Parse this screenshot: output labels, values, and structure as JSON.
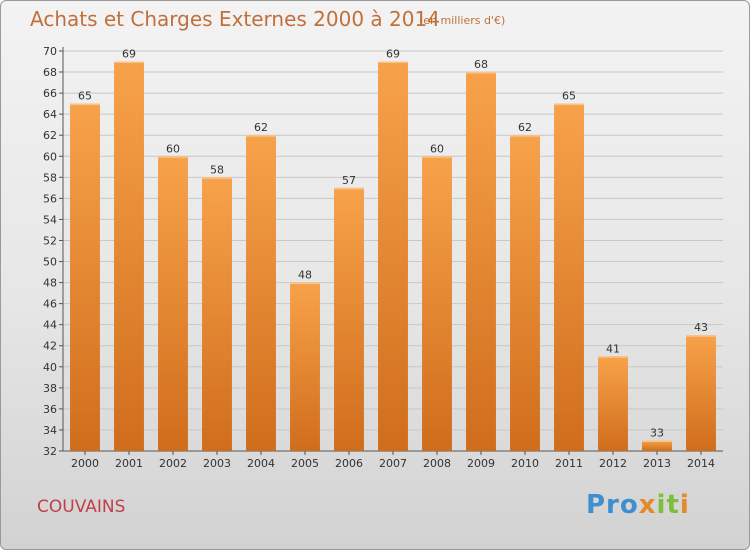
{
  "header": {
    "title": "Achats et Charges Externes 2000 à 2014",
    "subtitle": "(en milliers d'€)"
  },
  "footer": {
    "place": "COUVAINS",
    "logo_parts": [
      "Pro",
      "x",
      "i",
      "t",
      "i"
    ],
    "logo_colors": [
      "#3f8fd0",
      "#e58a2a",
      "#7bbf3a",
      "#7bbf3a",
      "#e58a2a"
    ]
  },
  "colors": {
    "bar_light": "#f7a24a",
    "bar_dark": "#d06d1c",
    "grid": "#c8c8c8",
    "title": "#c0703a",
    "place": "#c0404a"
  },
  "chart_data": {
    "type": "bar",
    "categories": [
      "2000",
      "2001",
      "2002",
      "2003",
      "2004",
      "2005",
      "2006",
      "2007",
      "2008",
      "2009",
      "2010",
      "2011",
      "2012",
      "2013",
      "2014"
    ],
    "values": [
      65,
      69,
      60,
      58,
      62,
      48,
      57,
      69,
      60,
      68,
      62,
      65,
      41,
      33,
      43
    ],
    "title": "Achats et Charges Externes 2000 à 2014",
    "subtitle": "(en milliers d'€)",
    "xlabel": "",
    "ylabel": "",
    "ylim": [
      32,
      70
    ],
    "yticks": [
      32,
      34,
      36,
      38,
      40,
      42,
      44,
      46,
      48,
      50,
      52,
      54,
      56,
      58,
      60,
      62,
      64,
      66,
      68,
      70
    ],
    "grid": true,
    "legend": "none"
  }
}
